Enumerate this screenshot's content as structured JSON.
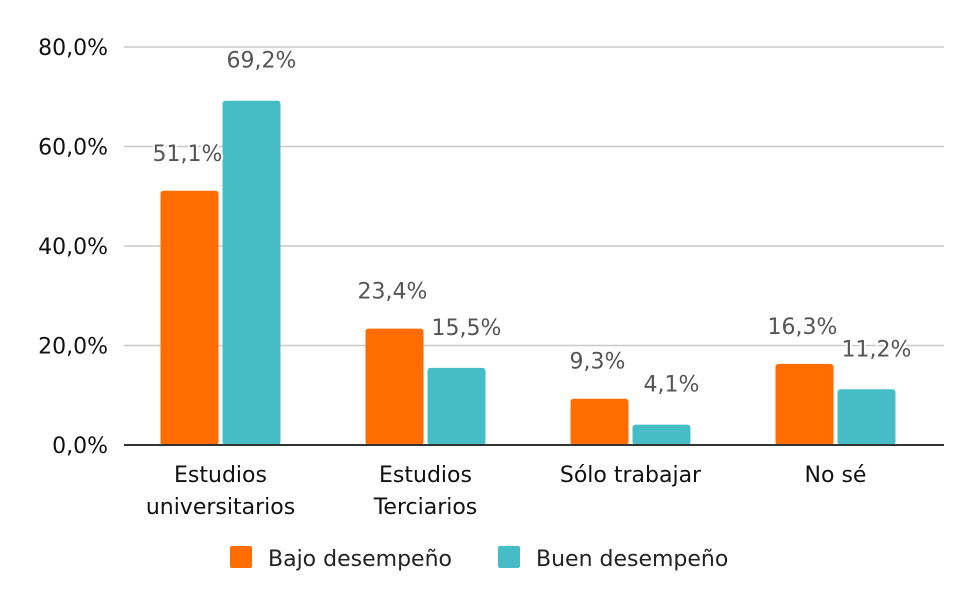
{
  "chart_data": {
    "type": "bar",
    "categories": [
      [
        "Estudios",
        "universitarios"
      ],
      [
        "Estudios",
        "Terciarios"
      ],
      [
        "Sólo trabajar"
      ],
      [
        "No sé"
      ]
    ],
    "series": [
      {
        "name": "Bajo desempeño",
        "color": "#ff6d01",
        "values": [
          51.1,
          23.4,
          9.3,
          16.3
        ],
        "labels": [
          "51,1%",
          "23,4%",
          "9,3%",
          "16,3%"
        ]
      },
      {
        "name": "Buen desempeño",
        "color": "#46bdc6",
        "values": [
          69.2,
          15.5,
          4.1,
          11.2
        ],
        "labels": [
          "69,2%",
          "15,5%",
          "4,1%",
          "11,2%"
        ]
      }
    ],
    "y_ticks": [
      0,
      20,
      40,
      60,
      80
    ],
    "y_tick_labels": [
      "0,0%",
      "20,0%",
      "40,0%",
      "60,0%",
      "80,0%"
    ],
    "ylim": [
      0,
      80
    ],
    "grid": true,
    "legend_position": "bottom"
  }
}
